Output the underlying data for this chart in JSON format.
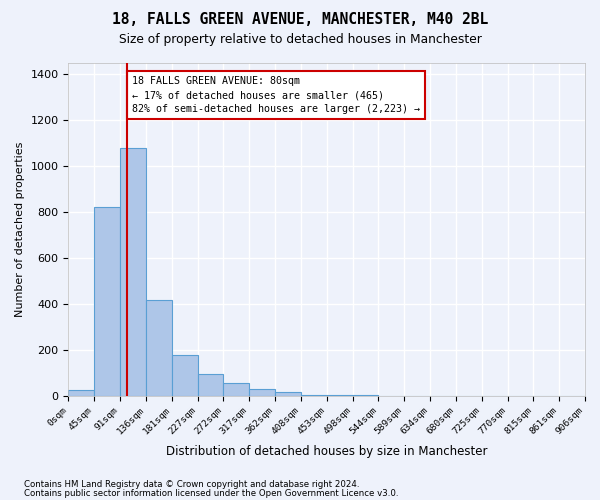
{
  "title": "18, FALLS GREEN AVENUE, MANCHESTER, M40 2BL",
  "subtitle": "Size of property relative to detached houses in Manchester",
  "xlabel": "Distribution of detached houses by size in Manchester",
  "ylabel": "Number of detached properties",
  "bar_values": [
    25,
    820,
    1080,
    415,
    178,
    95,
    55,
    30,
    18,
    5,
    2,
    1,
    0,
    0,
    0,
    0,
    0,
    0,
    0,
    0
  ],
  "bar_labels": [
    "0sqm",
    "45sqm",
    "91sqm",
    "136sqm",
    "181sqm",
    "227sqm",
    "272sqm",
    "317sqm",
    "362sqm",
    "408sqm",
    "453sqm",
    "498sqm",
    "544sqm",
    "589sqm",
    "634sqm",
    "680sqm",
    "725sqm",
    "770sqm",
    "815sqm",
    "861sqm",
    "906sqm"
  ],
  "bar_color": "#aec6e8",
  "bar_edge_color": "#5a9fd4",
  "property_line_x": 1.78,
  "property_line_color": "#cc0000",
  "annotation_line1": "18 FALLS GREEN AVENUE: 80sqm",
  "annotation_line2": "← 17% of detached houses are smaller (465)",
  "annotation_line3": "82% of semi-detached houses are larger (2,223) →",
  "annotation_box_color": "#cc0000",
  "ylim": [
    0,
    1450
  ],
  "yticks": [
    0,
    200,
    400,
    600,
    800,
    1000,
    1200,
    1400
  ],
  "footer_line1": "Contains HM Land Registry data © Crown copyright and database right 2024.",
  "footer_line2": "Contains public sector information licensed under the Open Government Licence v3.0.",
  "bg_color": "#eef2fb",
  "plot_bg_color": "#eef2fb",
  "grid_color": "#ffffff"
}
